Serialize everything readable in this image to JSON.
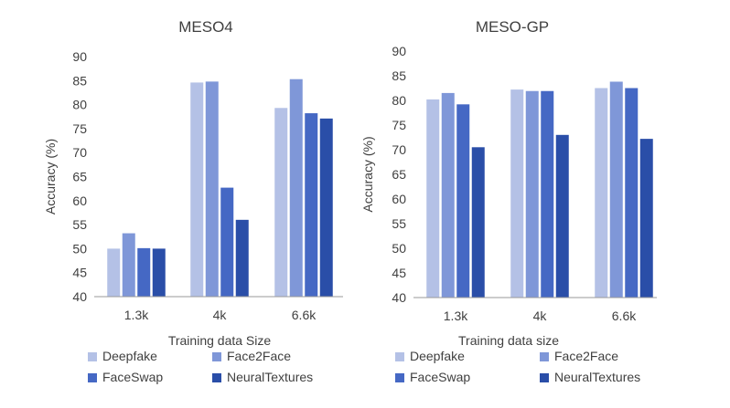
{
  "chart_data": [
    {
      "type": "bar",
      "title": "MESO4",
      "xlabel": "Training data Size",
      "ylabel": "Accuracy (%)",
      "ylim": [
        40,
        90
      ],
      "yticks": [
        "40",
        "45",
        "50",
        "55",
        "60",
        "65",
        "70",
        "75",
        "80",
        "85",
        "90"
      ],
      "categories": [
        "1.3k",
        "4k",
        "6.6k"
      ],
      "grid": false,
      "legend_position": "bottom",
      "series": [
        {
          "name": "Deepfake",
          "color": "#b4c1e6",
          "values": [
            50.0,
            84.6,
            79.3
          ]
        },
        {
          "name": "Face2Face",
          "color": "#7f97d8",
          "values": [
            53.2,
            84.8,
            85.3
          ]
        },
        {
          "name": "FaceSwap",
          "color": "#4568c4",
          "values": [
            50.1,
            62.7,
            78.2
          ]
        },
        {
          "name": "NeuralTextures",
          "color": "#2a4ea8",
          "values": [
            50.0,
            56.0,
            77.1
          ]
        }
      ]
    },
    {
      "type": "bar",
      "title": "MESO-GP",
      "xlabel": "Training data size",
      "ylabel": "Accuracy (%)",
      "ylim": [
        40,
        90
      ],
      "yticks": [
        "40",
        "45",
        "50",
        "55",
        "60",
        "65",
        "70",
        "75",
        "80",
        "85",
        "90"
      ],
      "categories": [
        "1.3k",
        "4k",
        "6.6k"
      ],
      "grid": false,
      "legend_position": "bottom",
      "series": [
        {
          "name": "Deepfake",
          "color": "#b4c1e6",
          "values": [
            80.2,
            82.2,
            82.5
          ]
        },
        {
          "name": "Face2Face",
          "color": "#7f97d8",
          "values": [
            81.5,
            81.9,
            83.8
          ]
        },
        {
          "name": "FaceSwap",
          "color": "#4568c4",
          "values": [
            79.2,
            81.9,
            82.5
          ]
        },
        {
          "name": "NeuralTextures",
          "color": "#2a4ea8",
          "values": [
            70.5,
            73.0,
            72.2
          ]
        }
      ]
    }
  ]
}
